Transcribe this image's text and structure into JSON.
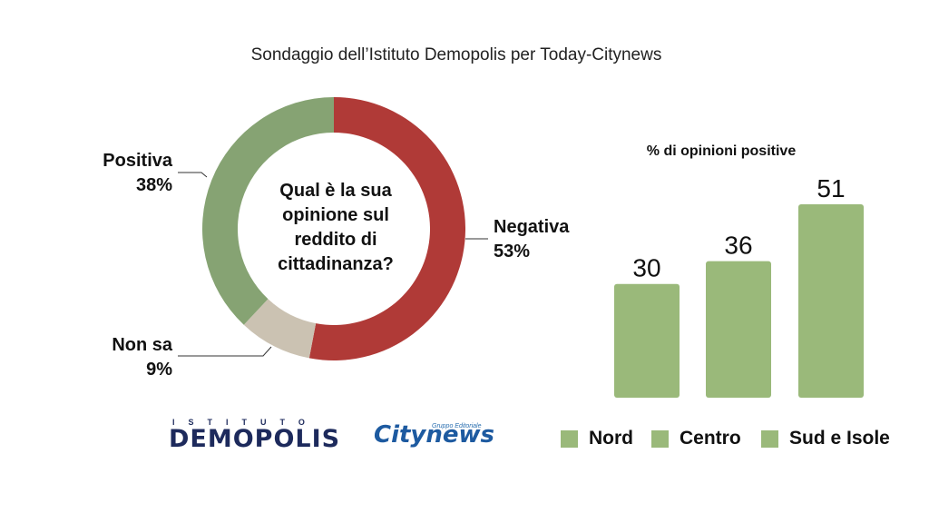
{
  "title": "Sondaggio dell’Istituto Demopolis per Today-Citynews",
  "donut": {
    "question_lines": [
      "Qual è la sua",
      "opinione sul",
      "reddito di",
      "cittadinanza?"
    ]
  },
  "bar": {
    "title": "% di opinioni positive"
  },
  "logos": {
    "demopolis_small": "ISTITUTO",
    "demopolis_big": "DEMOPOLIS",
    "citynews_tag": "Gruppo Editoriale",
    "citynews_city": "City",
    "citynews_news": "news"
  },
  "colors": {
    "negativa": "#b03a37",
    "positiva": "#86a373",
    "non_sa": "#cbc2b2",
    "bars": "#9ab97a"
  },
  "chart_data": [
    {
      "type": "pie",
      "title": "",
      "categories": [
        "Negativa",
        "Non sa",
        "Positiva"
      ],
      "values": [
        53,
        9,
        38
      ],
      "labels": [
        "53%",
        "9%",
        "38%"
      ],
      "donut": true
    },
    {
      "type": "bar",
      "title": "% di opinioni positive",
      "categories": [
        "Nord",
        "Centro",
        "Sud e Isole"
      ],
      "values": [
        30,
        36,
        51
      ],
      "xlabel": "",
      "ylabel": "",
      "ylim": [
        0,
        51
      ],
      "legend": "bottom"
    }
  ]
}
